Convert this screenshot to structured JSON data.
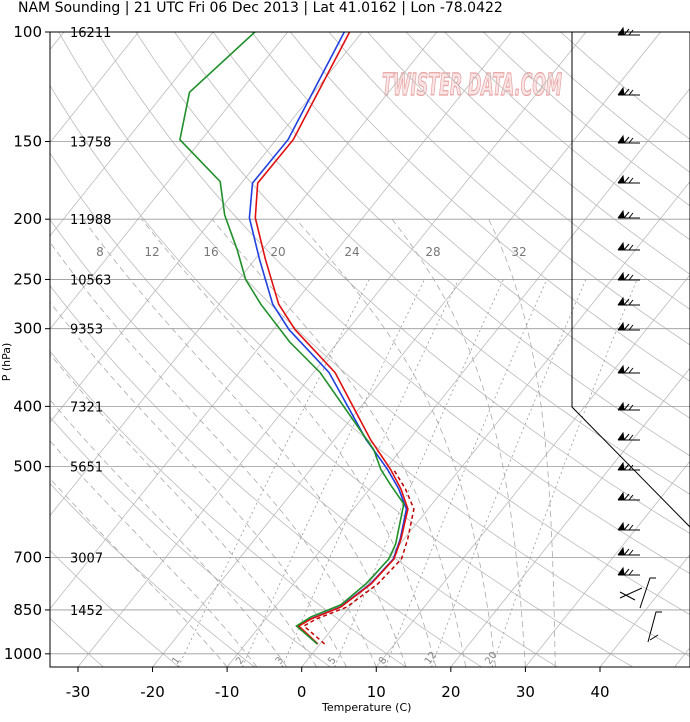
{
  "chart_data": {
    "type": "skewt",
    "title": "NAM Sounding | 21 UTC Fri 06 Dec 2013 | Lat 41.0162 | Lon -78.0422",
    "xlabel": "Temperature (C)",
    "ylabel": "P (hPa)",
    "watermark": "TWISTER DATA.COM",
    "log_y": true,
    "grid": true,
    "xlim": [
      -33.75,
      52.07
    ],
    "ylim": [
      100,
      1050
    ],
    "xticks": [
      -30,
      -20,
      -10,
      0,
      10,
      20,
      30,
      40
    ],
    "yticks": [
      100,
      150,
      200,
      250,
      300,
      400,
      500,
      700,
      850,
      1000
    ],
    "heights": [
      16211,
      13758,
      11988,
      10563,
      9353,
      7321,
      5651,
      3007,
      1452,
      null
    ],
    "mixing_ratio_lower_labels": [
      1,
      2,
      3,
      5,
      8,
      12,
      20
    ],
    "mixing_ratio_upper_labels": [
      8,
      12,
      16,
      20,
      24,
      28,
      32
    ],
    "series": [
      {
        "color": "#2040e0",
        "dash": false,
        "pressure": [
          964,
          902,
          879,
          841,
          772,
          704,
          654,
          585,
          543,
          505,
          452,
          353,
          301,
          274,
          232,
          199,
          175,
          149,
          100
        ],
        "values": [
          -0.4,
          -4.9,
          -4.0,
          -1.3,
          0.3,
          0.7,
          -0.5,
          -2.9,
          -6.1,
          -9.7,
          -15.8,
          -27.9,
          -37.9,
          -42.8,
          -49.4,
          -55.2,
          -58.5,
          -58.4,
          -62.4
        ]
      },
      {
        "color": "#e01010",
        "dash": false,
        "pressure": [
          964,
          902,
          879,
          841,
          772,
          704,
          654,
          585,
          543,
          505,
          452,
          353,
          301,
          274,
          232,
          199,
          175,
          149,
          100
        ],
        "values": [
          -0.3,
          -4.8,
          -3.9,
          -1.2,
          0.4,
          0.8,
          -0.4,
          -2.7,
          -5.8,
          -9.3,
          -15.2,
          -27.1,
          -37.1,
          -42.0,
          -48.6,
          -54.4,
          -57.8,
          -57.7,
          -61.7
        ]
      },
      {
        "color": "#c00000",
        "dash": true,
        "pressure": [
          964,
          902,
          879,
          841,
          772,
          704,
          654,
          585,
          543,
          505
        ],
        "values": [
          0.6,
          -4.1,
          -3.2,
          -0.4,
          1.3,
          1.8,
          0.5,
          -1.9,
          -5.2,
          -8.9
        ]
      },
      {
        "color": "#20902a",
        "dash": false,
        "pressure": [
          964,
          902,
          872,
          834,
          772,
          704,
          666,
          574,
          534,
          505,
          469,
          353,
          315,
          274,
          250,
          224,
          197,
          174,
          149,
          125,
          100
        ],
        "values": [
          -0.4,
          -5.1,
          -4.1,
          -1.4,
          -0.3,
          0.1,
          -0.6,
          -3.8,
          -7.7,
          -10.6,
          -13.7,
          -29.1,
          -36.5,
          -44.4,
          -49.1,
          -53.4,
          -58.8,
          -63.0,
          -72.9,
          -76.7,
          -74.4
        ]
      }
    ]
  }
}
